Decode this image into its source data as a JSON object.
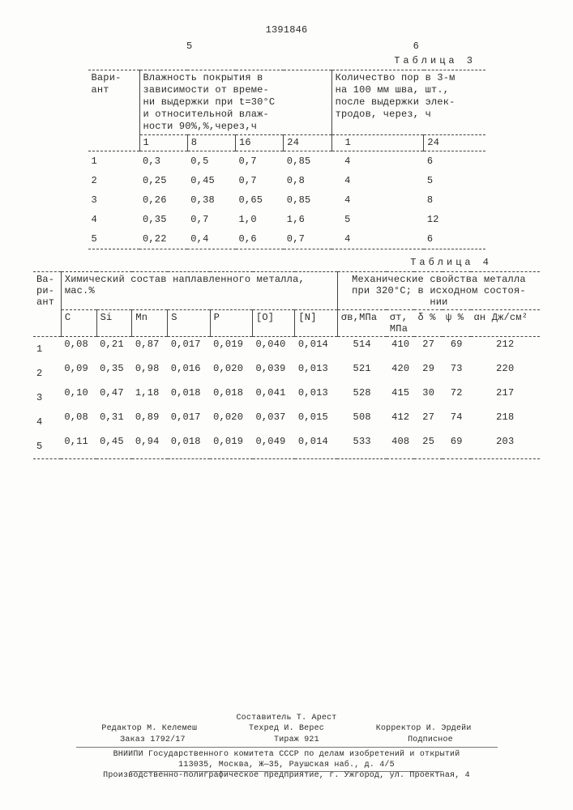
{
  "doc_number": "1391846",
  "page_left": "5",
  "page_right": "6",
  "table3": {
    "caption": "Таблица 3",
    "head_variant": "Вари-\nант",
    "head_moisture": "Влажность покрытия в\nзависимости от време-\nни выдержки при t=30°С\nи относительной влаж-\nности 90%,%,через,ч",
    "head_pores": "Количество пор в 3-м\nна 100 мм шва, шт.,\nпосле выдержки элек-\nтродов, через, ч",
    "sub_m": [
      "1",
      "8",
      "16",
      "24"
    ],
    "sub_p": [
      "1",
      "24"
    ],
    "rows": [
      {
        "v": "1",
        "m": [
          "0,3",
          "0,5",
          "0,7",
          "0,85"
        ],
        "p": [
          "4",
          "6"
        ]
      },
      {
        "v": "2",
        "m": [
          "0,25",
          "0,45",
          "0,7",
          "0,8"
        ],
        "p": [
          "4",
          "5"
        ]
      },
      {
        "v": "3",
        "m": [
          "0,26",
          "0,38",
          "0,65",
          "0,85"
        ],
        "p": [
          "4",
          "8"
        ]
      },
      {
        "v": "4",
        "m": [
          "0,35",
          "0,7",
          "1,0",
          "1,6"
        ],
        "p": [
          "5",
          "12"
        ]
      },
      {
        "v": "5",
        "m": [
          "0,22",
          "0,4",
          "0,6",
          "0,7"
        ],
        "p": [
          "4",
          "6"
        ]
      }
    ]
  },
  "table4": {
    "caption": "Таблица 4",
    "head_variant": "Ва-\nри-\nант",
    "head_chem": "Химический состав наплавленного металла,\nмас.%",
    "head_mech": "Механические свойства металла\nпри 320°С; в исходном состоя-\nнии",
    "sub_chem": [
      "C",
      "Si",
      "Mn",
      "S",
      "P",
      "[O]",
      "[N]"
    ],
    "sub_mech": [
      "σв,МПа",
      "σт,\nМПа",
      "δ %",
      "ψ %",
      "αн Дж/см²"
    ],
    "rows": [
      {
        "v": "1",
        "c": [
          "0,08",
          "0,21",
          "0,87",
          "0,017",
          "0,019",
          "0,040",
          "0,014"
        ],
        "m": [
          "514",
          "410",
          "27",
          "69",
          "212"
        ]
      },
      {
        "v": "2",
        "c": [
          "0,09",
          "0,35",
          "0,98",
          "0,016",
          "0,020",
          "0,039",
          "0,013"
        ],
        "m": [
          "521",
          "420",
          "29",
          "73",
          "220"
        ]
      },
      {
        "v": "3",
        "c": [
          "0,10",
          "0,47",
          "1,18",
          "0,018",
          "0,018",
          "0,041",
          "0,013"
        ],
        "m": [
          "528",
          "415",
          "30",
          "72",
          "217"
        ]
      },
      {
        "v": "4",
        "c": [
          "0,08",
          "0,31",
          "0,89",
          "0,017",
          "0,020",
          "0,037",
          "0,015"
        ],
        "m": [
          "508",
          "412",
          "27",
          "74",
          "218"
        ]
      },
      {
        "v": "5",
        "c": [
          "0,11",
          "0,45",
          "0,94",
          "0,018",
          "0,019",
          "0,049",
          "0,014"
        ],
        "m": [
          "533",
          "408",
          "25",
          "69",
          "203"
        ]
      }
    ]
  },
  "footer": {
    "compiler": "Составитель Т. Арест",
    "editor": "Редактор М. Келемеш",
    "techred": "Техред И. Верес",
    "corrector": "Корректор И. Эрдейи",
    "order": "Заказ 1792/17",
    "tirage": "Тираж 921",
    "subscribe": "Подписное",
    "vniipi": "ВНИИПИ Государственного комитета СССР по делам изобретений и открытий",
    "addr1": "113035, Москва, Ж—35, Раушская наб., д. 4/5",
    "addr2": "Производственно-полиграфическое предприятие, г. Ужгород, ул. Проектная, 4"
  }
}
